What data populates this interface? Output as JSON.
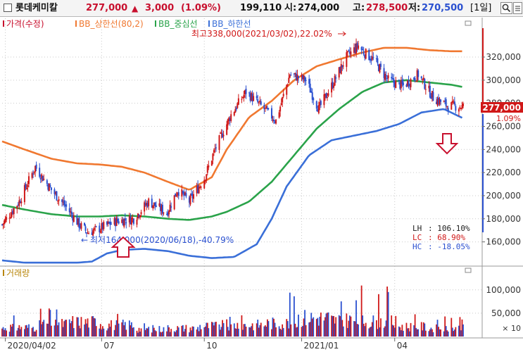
{
  "header": {
    "stock_name": "롯데케미칼",
    "price": "277,000",
    "change_arrow": "▲",
    "change": "3,000",
    "change_pct": "(1.09%)",
    "volume": "199,110",
    "open_label": "시:",
    "open_value": "274,000",
    "high_label": "고:",
    "high_value": "278,500",
    "low_label": "저:",
    "low_value": "270,500",
    "period": "[1일]"
  },
  "colors": {
    "price": "#c8102e",
    "upper_band": "#f07830",
    "middle_band": "#2aa34a",
    "lower_band": "#3a6fd8",
    "up_candle": "#d01818",
    "down_candle": "#2a50d0",
    "arrow": "#c8102e"
  },
  "annotations": {
    "high_note": "최고338,000(2021/03/02),22.02%",
    "low_note": "최저164,000(2020/06/18),-40.79%",
    "last_price": "277,000",
    "last_pct": "1.09%"
  },
  "stats": [
    {
      "label": "LH",
      "value": ": 106.10%",
      "color": "#202020"
    },
    {
      "label": "LC",
      "value": ":  68.90%",
      "color": "#d01818"
    },
    {
      "label": "HC",
      "value": ": -18.05%",
      "color": "#2a50d0"
    }
  ],
  "chart_data": [
    {
      "type": "line",
      "legend": [
        "가격(수정)",
        "BB_상한선(80,2)",
        "BB_중심선",
        "BB_하한선"
      ],
      "y_ticks": [
        "320,000",
        "300,000",
        "280,000",
        "260,000",
        "240,000",
        "220,000",
        "200,000",
        "180,000",
        "160,000"
      ],
      "y_tick_values": [
        320000,
        300000,
        280000,
        260000,
        240000,
        220000,
        200000,
        180000,
        160000
      ],
      "ylim": [
        150000,
        345000
      ],
      "x_ticks": [
        "2020/04/02",
        "07",
        "10",
        "2021/01",
        "04"
      ],
      "x_tick_dates": [
        "2020-04-02",
        "2020-07-01",
        "2020-10-05",
        "2021-01-04",
        "2021-04-01"
      ],
      "xlim": [
        "2020-03-30",
        "2021-06-04"
      ],
      "series": [
        {
          "name": "가격(수정)",
          "x": [
            "2020-03-30",
            "2020-04-15",
            "2020-04-30",
            "2020-05-15",
            "2020-05-29",
            "2020-06-10",
            "2020-06-18",
            "2020-06-30",
            "2020-07-15",
            "2020-07-31",
            "2020-08-14",
            "2020-08-31",
            "2020-09-10",
            "2020-09-21",
            "2020-10-05",
            "2020-10-15",
            "2020-10-30",
            "2020-11-13",
            "2020-11-30",
            "2020-12-11",
            "2020-12-24",
            "2021-01-08",
            "2021-01-20",
            "2021-02-01",
            "2021-02-15",
            "2021-02-26",
            "2021-03-02",
            "2021-03-12",
            "2021-03-26",
            "2021-04-09",
            "2021-04-23",
            "2021-05-07",
            "2021-05-20",
            "2021-06-04"
          ],
          "values": [
            175000,
            195000,
            225000,
            205000,
            190000,
            175000,
            168000,
            172000,
            178000,
            180000,
            195000,
            185000,
            205000,
            195000,
            215000,
            240000,
            270000,
            290000,
            275000,
            265000,
            305000,
            300000,
            275000,
            295000,
            320000,
            330000,
            325000,
            318000,
            300000,
            295000,
            305000,
            285000,
            278000,
            277000
          ]
        },
        {
          "name": "BB_상한선(80,2)",
          "x": [
            "2020-03-30",
            "2020-04-20",
            "2020-05-15",
            "2020-06-08",
            "2020-06-29",
            "2020-07-20",
            "2020-08-10",
            "2020-09-01",
            "2020-09-21",
            "2020-10-12",
            "2020-10-26",
            "2020-11-16",
            "2020-12-07",
            "2020-12-28",
            "2021-01-18",
            "2021-02-08",
            "2021-03-02",
            "2021-03-22",
            "2021-04-12",
            "2021-05-03",
            "2021-05-24",
            "2021-06-04"
          ],
          "values": [
            247000,
            240000,
            232000,
            228000,
            227000,
            225000,
            220000,
            212000,
            205000,
            216000,
            240000,
            268000,
            282000,
            300000,
            312000,
            318000,
            324000,
            328000,
            328000,
            326000,
            325000,
            325000
          ]
        },
        {
          "name": "BB_중심선",
          "x": [
            "2020-03-30",
            "2020-04-20",
            "2020-05-15",
            "2020-06-08",
            "2020-06-29",
            "2020-07-20",
            "2020-08-10",
            "2020-09-01",
            "2020-09-21",
            "2020-10-12",
            "2020-10-26",
            "2020-11-16",
            "2020-12-07",
            "2020-12-28",
            "2021-01-18",
            "2021-02-08",
            "2021-03-02",
            "2021-03-22",
            "2021-04-12",
            "2021-05-03",
            "2021-05-24",
            "2021-06-04"
          ],
          "values": [
            192000,
            188000,
            184000,
            182000,
            182000,
            183000,
            182000,
            180000,
            179000,
            182000,
            186000,
            195000,
            212000,
            235000,
            258000,
            275000,
            290000,
            298000,
            300000,
            298000,
            296000,
            294000
          ]
        },
        {
          "name": "BB_하한선",
          "x": [
            "2020-03-30",
            "2020-04-20",
            "2020-05-15",
            "2020-06-08",
            "2020-06-22",
            "2020-07-06",
            "2020-07-20",
            "2020-08-10",
            "2020-09-01",
            "2020-09-21",
            "2020-10-12",
            "2020-11-02",
            "2020-11-23",
            "2020-12-07",
            "2020-12-21",
            "2021-01-11",
            "2021-02-01",
            "2021-02-22",
            "2021-03-15",
            "2021-04-05",
            "2021-04-26",
            "2021-05-17",
            "2021-06-04"
          ],
          "values": [
            144000,
            142000,
            142000,
            142000,
            143000,
            150000,
            153000,
            154000,
            152000,
            148000,
            146000,
            147000,
            158000,
            180000,
            208000,
            235000,
            248000,
            252000,
            256000,
            262000,
            272000,
            275000,
            267000
          ]
        }
      ]
    },
    {
      "type": "bar",
      "legend": [
        "거래량"
      ],
      "y_ticks": [
        "100,000",
        "50,000"
      ],
      "y_tick_values": [
        100000,
        50000
      ],
      "unit": "× 10",
      "ylim": [
        0,
        145000
      ],
      "x": [
        "2020-04",
        "2020-05",
        "2020-06",
        "2020-07",
        "2020-08",
        "2020-09",
        "2020-10",
        "2020-11",
        "2020-12",
        "2021-01",
        "2021-02",
        "2021-03",
        "2021-04",
        "2021-05"
      ],
      "values": [
        22000,
        30000,
        35000,
        28000,
        18000,
        20000,
        25000,
        28000,
        32000,
        45000,
        40000,
        36000,
        24000,
        20000
      ],
      "peak_values": [
        55000,
        72000,
        75000,
        50000,
        30000,
        34000,
        45000,
        52000,
        110000,
        132000,
        90000,
        118000,
        52000,
        45000
      ]
    }
  ]
}
